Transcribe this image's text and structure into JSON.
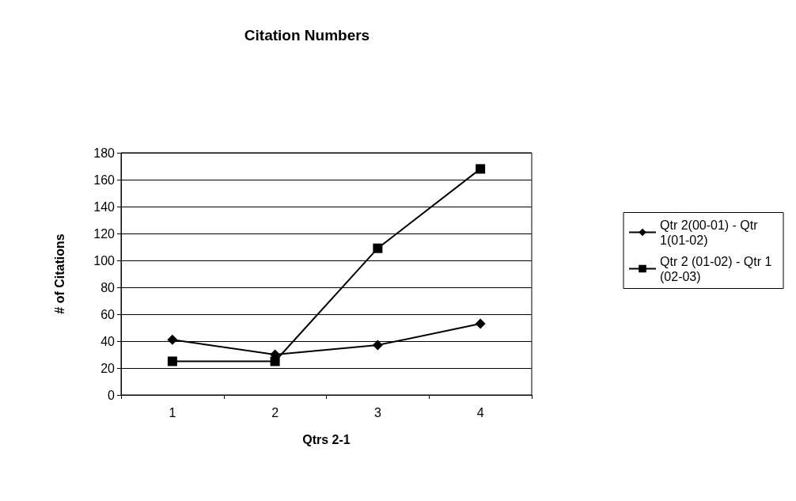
{
  "chart_data": {
    "type": "line",
    "title": "Citation Numbers",
    "xlabel": "Qtrs 2-1",
    "ylabel": "# of Citations",
    "categories": [
      "1",
      "2",
      "3",
      "4"
    ],
    "series": [
      {
        "name": "Qtr 2(00-01) - Qtr 1(01-02)",
        "color": "#000000",
        "marker": "diamond",
        "values": [
          41,
          30,
          37,
          53
        ]
      },
      {
        "name": "Qtr 2 (01-02) - Qtr 1 (02-03)",
        "color": "#000000",
        "marker": "square",
        "values": [
          25,
          25,
          109,
          168
        ]
      }
    ],
    "ylim": [
      0,
      180
    ],
    "yticks": [
      0,
      20,
      40,
      60,
      80,
      100,
      120,
      140,
      160,
      180
    ],
    "grid": "y",
    "legend": "right",
    "line_style": "solid"
  }
}
